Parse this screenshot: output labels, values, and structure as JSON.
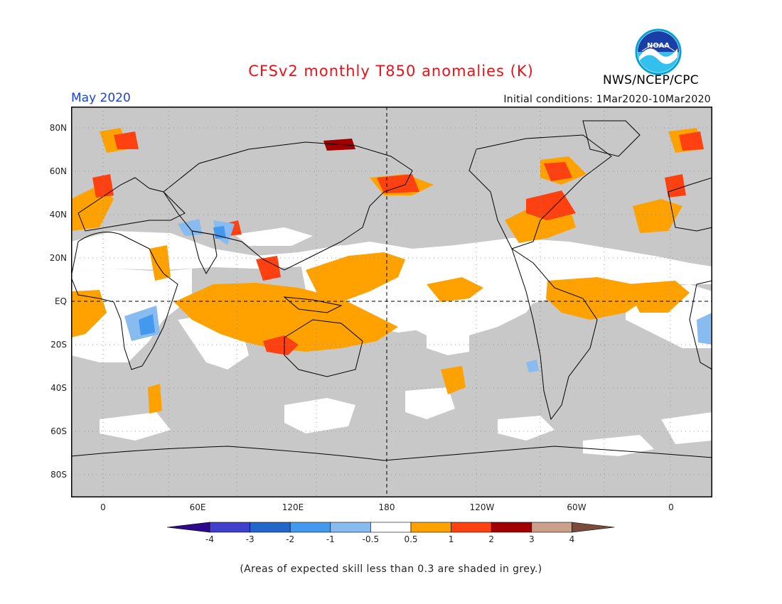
{
  "header": {
    "title": "CFSv2 monthly T850 anomalies (K)",
    "month": "May 2020",
    "init_conditions": "Initial conditions: 1Mar2020-10Mar2020",
    "agency": "NWS/NCEP/CPC",
    "logo_text": "NOAA"
  },
  "axes": {
    "lat_labels": [
      "80N",
      "60N",
      "40N",
      "20N",
      "EQ",
      "20S",
      "40S",
      "60S",
      "80S"
    ],
    "lon_labels": [
      "0",
      "60E",
      "120E",
      "180",
      "120W",
      "60W",
      "0"
    ]
  },
  "colorbar": {
    "ticks": [
      "-4",
      "-3",
      "-2",
      "-1",
      "-0.5",
      "0.5",
      "1",
      "2",
      "3",
      "4"
    ],
    "colors": [
      "#2d0a8c",
      "#4040cc",
      "#2266cc",
      "#4499ee",
      "#88bbf0",
      "#ffffff",
      "#ffa200",
      "#ff4010",
      "#a00000",
      "#caa08c",
      "#7a4a3a"
    ]
  },
  "colors": {
    "title": "#e8121b",
    "month": "#1a3fe0",
    "grey": "#c8c8c8",
    "warm1": "#ffa200",
    "warm2": "#ff4010",
    "warm3": "#a00000",
    "cool1": "#88bbf0",
    "cool2": "#4499ee"
  },
  "footnote": "(Areas of expected skill less than 0.3 are shaded in grey.)"
}
